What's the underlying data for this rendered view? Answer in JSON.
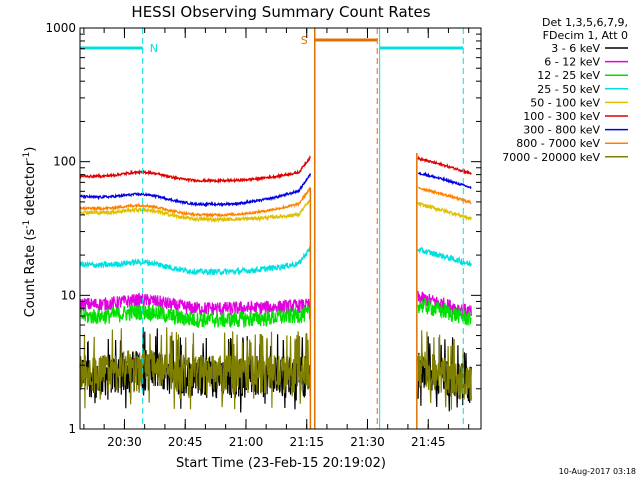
{
  "chart_data": {
    "type": "line",
    "title": "HESSI Observing Summary Count Rates",
    "xlabel": "Start Time (23-Feb-15 20:19:02)",
    "ylabel_main": "Count Rate (s",
    "ylabel_sup1": "-1",
    "ylabel_mid": " detector",
    "ylabel_sup2": "-1",
    "ylabel_end": ")",
    "yscale": "log",
    "ylim": [
      1,
      1000
    ],
    "xlim_minutes": [
      20.317,
      21.967
    ],
    "x_tick_labels": [
      "20:30",
      "20:45",
      "21:00",
      "21:15",
      "21:30",
      "21:45"
    ],
    "x_ticks_hours": [
      20.5,
      20.75,
      21.0,
      21.25,
      21.5,
      21.75
    ],
    "y_tick_labels": [
      "1",
      "10",
      "100",
      "1000"
    ],
    "y_ticks": [
      1,
      10,
      100,
      1000
    ],
    "legend_header": [
      "Det 1,3,5,6,7,9,",
      "FDecim 1, Att 0"
    ],
    "legend_position": "top-right",
    "annotations": {
      "night_label": "N",
      "saa_label": "S",
      "footer_date": "10-Aug-2017 03:18"
    },
    "night_intervals_hours": [
      [
        20.317,
        20.575
      ],
      [
        21.55,
        21.894
      ]
    ],
    "saa_interval_hours": [
      21.283,
      21.54
    ],
    "gap_hours": [
      21.265,
      21.638
    ],
    "series": [
      {
        "name": "3 - 6 keV",
        "color": "#000000",
        "start": 2.6,
        "mid": 2.6,
        "end": 2.6,
        "noise": 0.35
      },
      {
        "name": "6 - 12 keV",
        "color": "#e000e0",
        "start": 8.6,
        "mid": 8.0,
        "end": 8.8,
        "noise": 0.12
      },
      {
        "name": "12 - 25 keV",
        "color": "#00e000",
        "start": 7.0,
        "mid": 6.6,
        "end": 7.8,
        "noise": 0.14
      },
      {
        "name": "25 - 50 keV",
        "color": "#00e0e0",
        "start": 17,
        "mid": 15,
        "end": 20,
        "noise": 0.05
      },
      {
        "name": "50 - 100 keV",
        "color": "#e0c000",
        "start": 42,
        "mid": 37,
        "end": 44,
        "noise": 0.03
      },
      {
        "name": "100 - 300 keV",
        "color": "#e00000",
        "start": 78,
        "mid": 72,
        "end": 96,
        "noise": 0.02
      },
      {
        "name": "300 - 800 keV",
        "color": "#0000e0",
        "start": 55,
        "mid": 48,
        "end": 75,
        "noise": 0.02
      },
      {
        "name": "800 - 7000 keV",
        "color": "#ff8000",
        "start": 45,
        "mid": 40,
        "end": 58,
        "noise": 0.02
      },
      {
        "name": "7000 - 20000 keV",
        "color": "#808000",
        "start": 2.7,
        "mid": 2.7,
        "end": 2.7,
        "noise": 0.32
      }
    ],
    "night_color": "#00e0e0",
    "saa_color": "#e07000"
  }
}
